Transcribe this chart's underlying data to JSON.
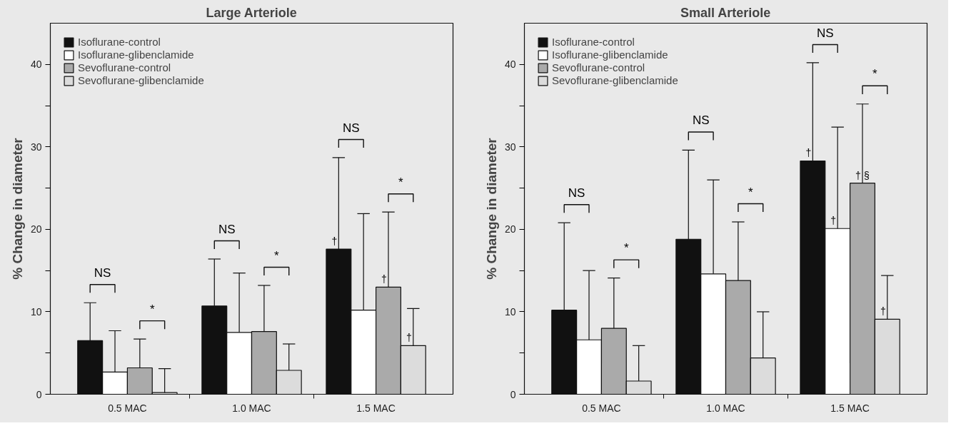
{
  "chart_data": [
    {
      "type": "bar",
      "title": "Large Arteriole",
      "ylabel": "% Change in diameter",
      "categories": [
        "0.5 MAC",
        "1.0 MAC",
        "1.5 MAC"
      ],
      "series": [
        {
          "name": "Isoflurane-control",
          "color": "#111111",
          "values": [
            6.5,
            10.7,
            17.6
          ],
          "errors": [
            [
              6.5,
              11.1
            ],
            [
              10.7,
              16.4
            ],
            [
              17.6,
              28.7
            ]
          ],
          "value_labels": [
            null,
            null,
            "†"
          ]
        },
        {
          "name": "Isoflurane-glibenclamide",
          "color": "#ffffff",
          "values": [
            2.7,
            7.5,
            10.2
          ],
          "errors": [
            [
              2.7,
              7.7
            ],
            [
              7.5,
              14.7
            ],
            [
              10.2,
              21.9
            ]
          ]
        },
        {
          "name": "Sevoflurane-control",
          "color": "#aaaaaa",
          "values": [
            3.2,
            7.6,
            13.0
          ],
          "errors": [
            [
              3.2,
              6.7
            ],
            [
              7.6,
              13.2
            ],
            [
              13.0,
              22.1
            ]
          ],
          "value_labels": [
            null,
            null,
            "†"
          ]
        },
        {
          "name": "Sevoflurane-glibenclamide",
          "color": "#dcdcdc",
          "values": [
            0.2,
            2.9,
            5.9
          ],
          "errors": [
            [
              0.2,
              3.1
            ],
            [
              2.9,
              6.1
            ],
            [
              5.9,
              10.4
            ]
          ],
          "value_labels": [
            null,
            null,
            "†"
          ]
        }
      ],
      "ylim": [
        0,
        45
      ],
      "yticks": [
        0,
        {
          "value": 5,
          "label": null
        },
        10,
        {
          "value": 15,
          "label": null
        },
        20,
        {
          "value": 25,
          "label": null
        },
        30,
        {
          "value": 35,
          "label": null
        },
        40
      ],
      "grid": false,
      "legend": "top left",
      "annotations": [
        "NS",
        "*",
        "NS",
        "*",
        "NS",
        "*"
      ]
    },
    {
      "type": "bar",
      "title": "Small Arteriole",
      "ylabel": "% Change in diameter",
      "categories": [
        "0.5 MAC",
        "1.0 MAC",
        "1.5 MAC"
      ],
      "series": [
        {
          "name": "Isoflurane-control",
          "color": "#111111",
          "values": [
            10.2,
            18.8,
            28.3
          ],
          "errors": [
            [
              10.2,
              20.8
            ],
            [
              18.8,
              29.6
            ],
            [
              28.3,
              40.2
            ]
          ],
          "value_labels": [
            null,
            null,
            "†"
          ]
        },
        {
          "name": "Isoflurane-glibenclamide",
          "color": "#ffffff",
          "values": [
            6.6,
            14.6,
            20.1
          ],
          "errors": [
            [
              6.6,
              15.0
            ],
            [
              14.6,
              26.0
            ],
            [
              20.1,
              32.4
            ]
          ],
          "value_labels": [
            null,
            null,
            "†"
          ]
        },
        {
          "name": "Sevoflurane-control",
          "color": "#aaaaaa",
          "values": [
            8.0,
            13.8,
            25.6
          ],
          "errors": [
            [
              8.0,
              14.1
            ],
            [
              13.8,
              20.9
            ],
            [
              25.6,
              35.2
            ]
          ],
          "value_labels": [
            null,
            null,
            "† §"
          ]
        },
        {
          "name": "Sevoflurane-glibenclamide",
          "color": "#dcdcdc",
          "values": [
            1.6,
            4.4,
            9.1
          ],
          "errors": [
            [
              1.6,
              5.9
            ],
            [
              4.4,
              10.0
            ],
            [
              9.1,
              14.4
            ]
          ],
          "value_labels": [
            null,
            null,
            "†"
          ]
        }
      ],
      "ylim": [
        0,
        45
      ],
      "yticks": [
        0,
        {
          "value": 5,
          "label": null
        },
        10,
        {
          "value": 15,
          "label": null
        },
        20,
        {
          "value": 25,
          "label": null
        },
        30,
        {
          "value": 35,
          "label": null
        },
        40
      ],
      "grid": false,
      "legend": "top left",
      "annotations": [
        "NS",
        "*",
        "NS",
        "*",
        "NS",
        "*"
      ]
    }
  ]
}
